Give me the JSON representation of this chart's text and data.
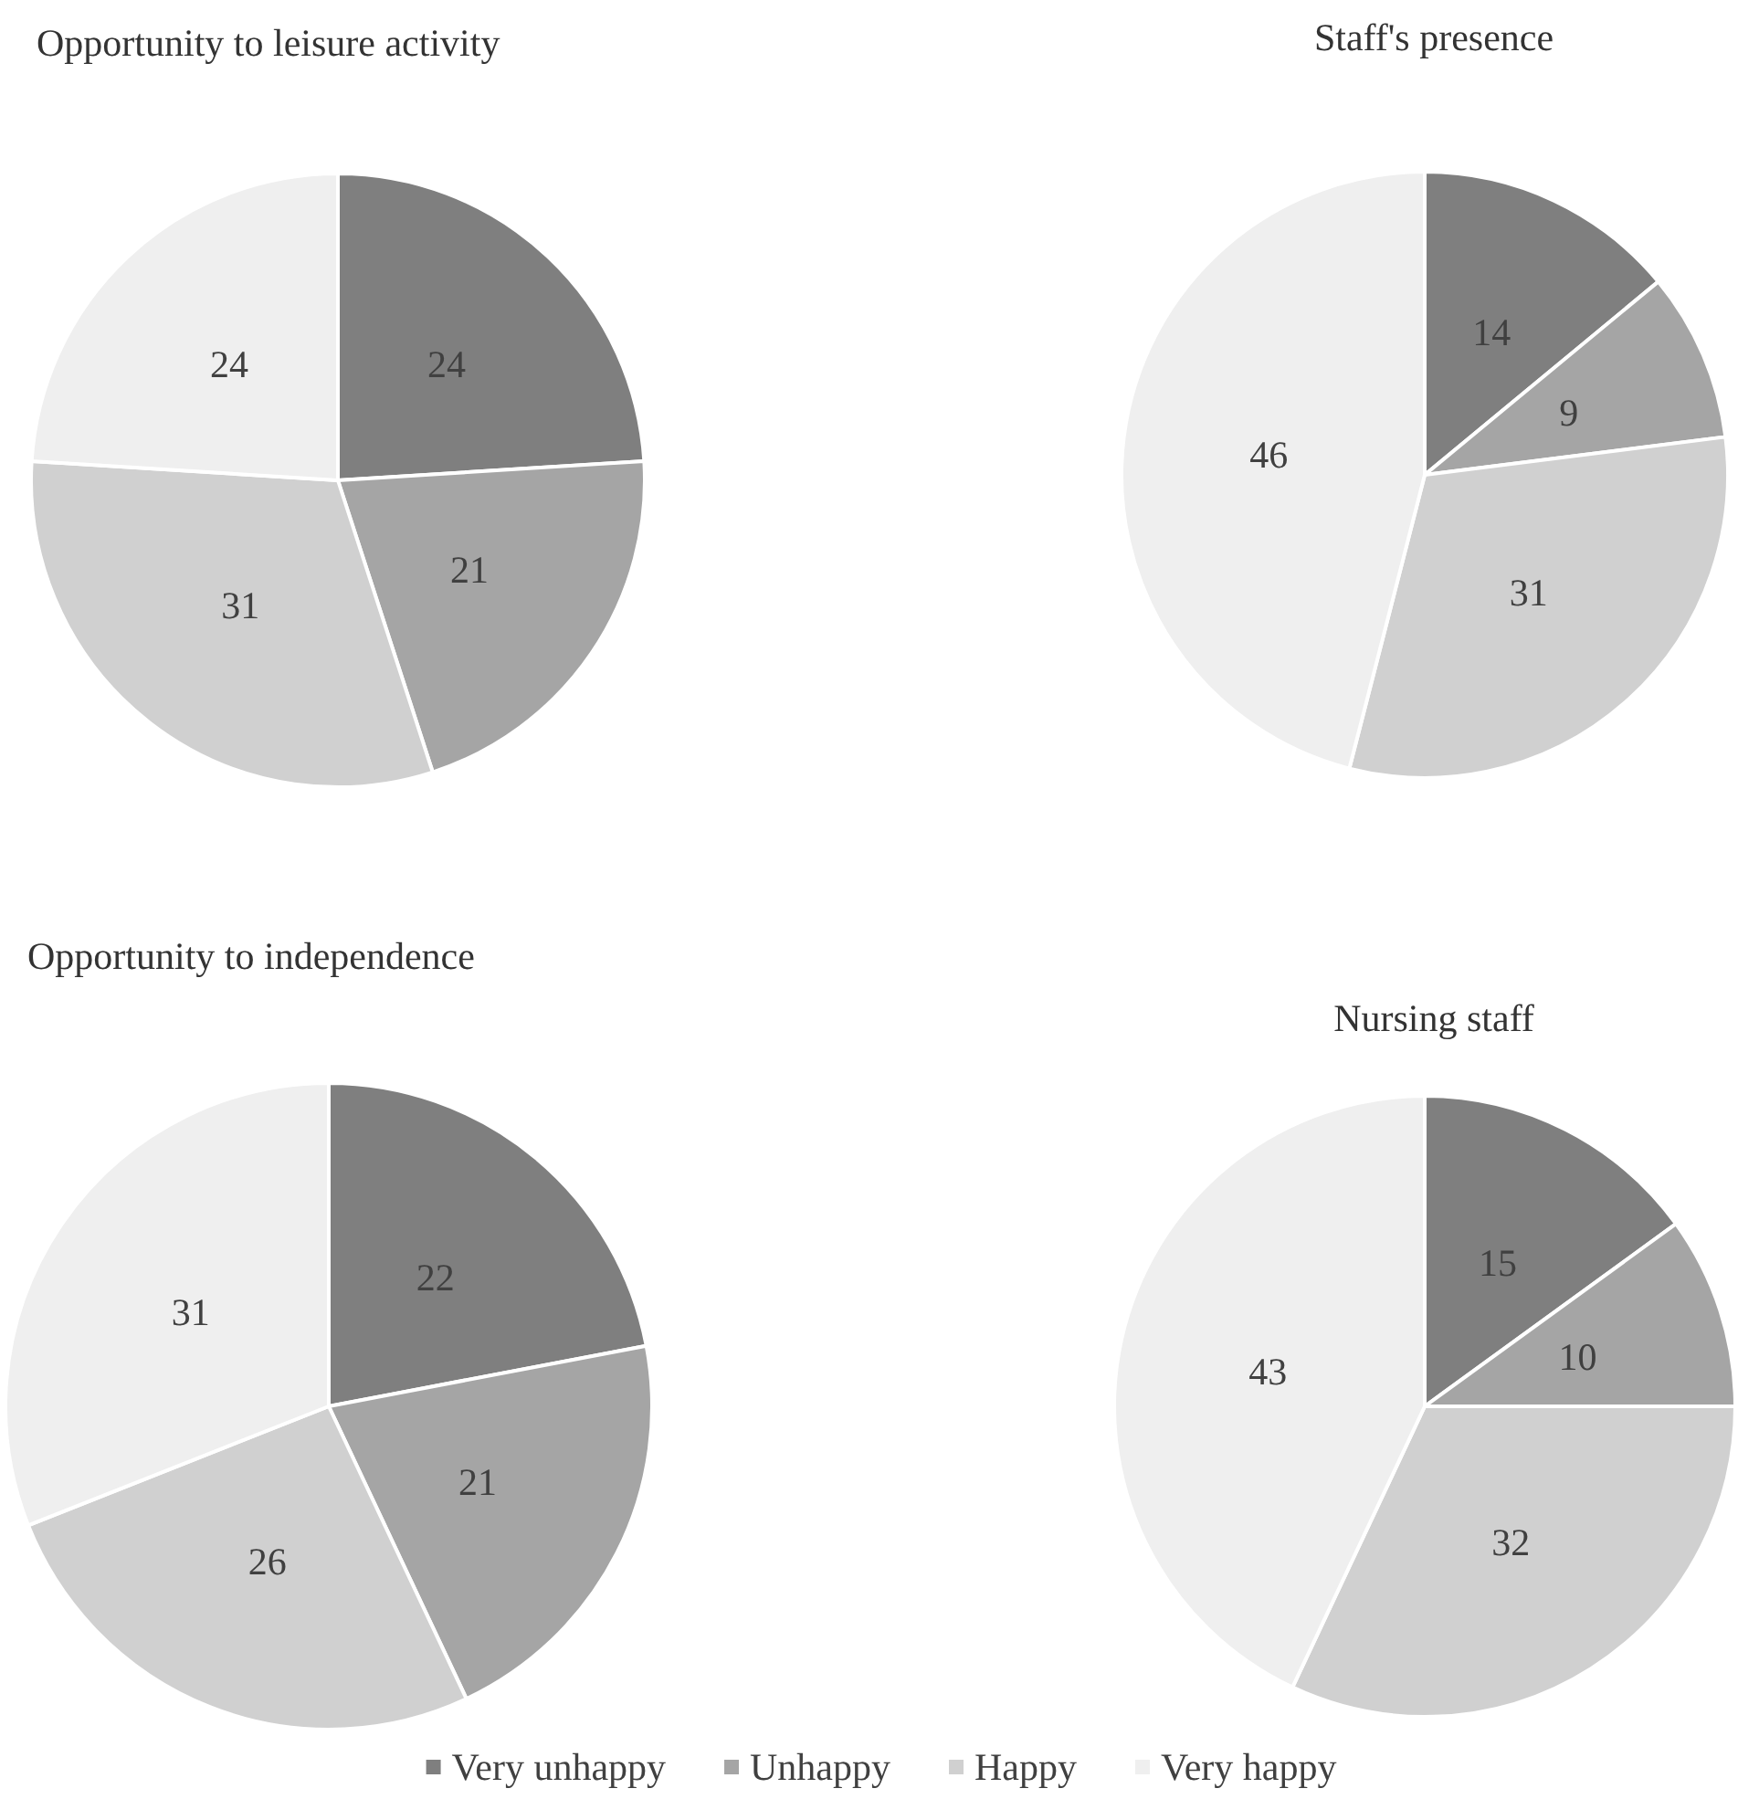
{
  "chart_data": [
    {
      "type": "pie",
      "title": "Opportunity to leisure activity",
      "values": [
        24,
        21,
        31,
        24
      ],
      "colors": [
        "#7f7f7f",
        "#a5a5a5",
        "#d0d0d0",
        "#efefef"
      ],
      "data_labels": true
    },
    {
      "type": "pie",
      "title": "Staff's presence",
      "values": [
        14,
        9,
        31,
        46
      ],
      "colors": [
        "#7f7f7f",
        "#a5a5a5",
        "#d0d0d0",
        "#efefef"
      ],
      "data_labels": true
    },
    {
      "type": "pie",
      "title": "Opportunity to independence",
      "values": [
        22,
        21,
        26,
        31
      ],
      "colors": [
        "#7f7f7f",
        "#a5a5a5",
        "#d0d0d0",
        "#efefef"
      ],
      "data_labels": true
    },
    {
      "type": "pie",
      "title": "Nursing staff",
      "categories": [
        "Very unhappy",
        "Unhappy",
        "Happy",
        "Very happy"
      ],
      "values": [
        15,
        10,
        32,
        43
      ],
      "colors": [
        "#7f7f7f",
        "#a5a5a5",
        "#d0d0d0",
        "#efefef"
      ],
      "data_labels": true,
      "legend": "bottom"
    }
  ]
}
